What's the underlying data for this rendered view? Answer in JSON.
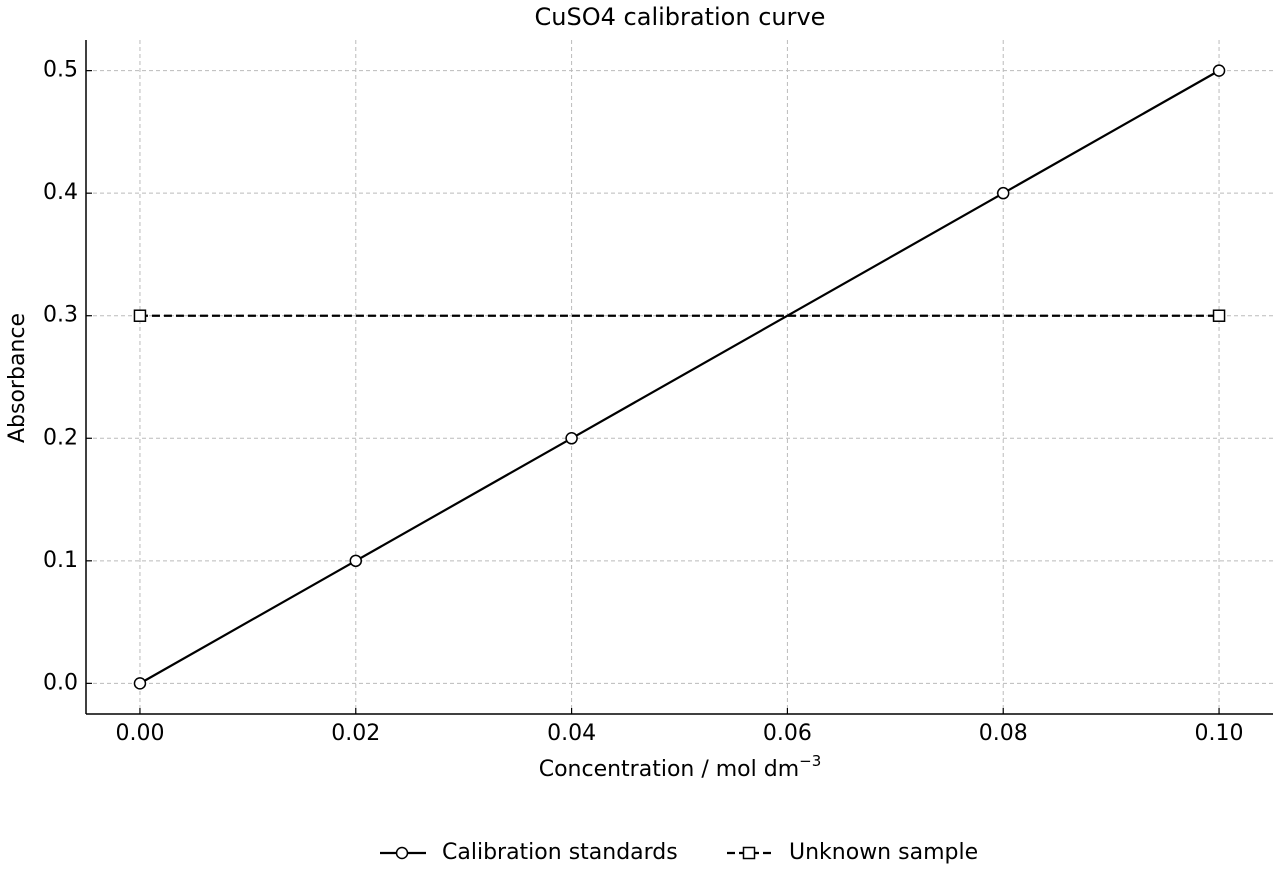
{
  "chart_data": {
    "type": "line",
    "title": "CuSO4 calibration curve",
    "x_label": "Concentration / mol dm",
    "x_label_superscript": "−3",
    "y_label": "Absorbance",
    "series": [
      {
        "name": "Calibration standards",
        "color": "#000000",
        "marker": "circle",
        "linestyle": "solid",
        "x": [
          0,
          0.02,
          0.04,
          0.08,
          0.1
        ],
        "values": [
          0,
          0.1,
          0.2,
          0.4,
          0.5
        ]
      },
      {
        "name": "Unknown sample",
        "color": "#000000",
        "marker": "square",
        "linestyle": "dashed",
        "x": [
          0,
          0.1
        ],
        "values": [
          0.3,
          0.3
        ]
      }
    ],
    "xlim": [
      -0.005,
      0.105
    ],
    "ylim": [
      -0.025,
      0.525
    ],
    "xticks": [
      {
        "value": 0,
        "label": "0.00"
      },
      0.02,
      0.04,
      0.06,
      0.08,
      {
        "value": 0.1,
        "label": "0.10"
      }
    ],
    "yticks": [
      {
        "value": 0,
        "label": "0.0"
      },
      0.1,
      0.2,
      0.3,
      0.4,
      0.5
    ],
    "grid": true,
    "legend": "bottom"
  }
}
